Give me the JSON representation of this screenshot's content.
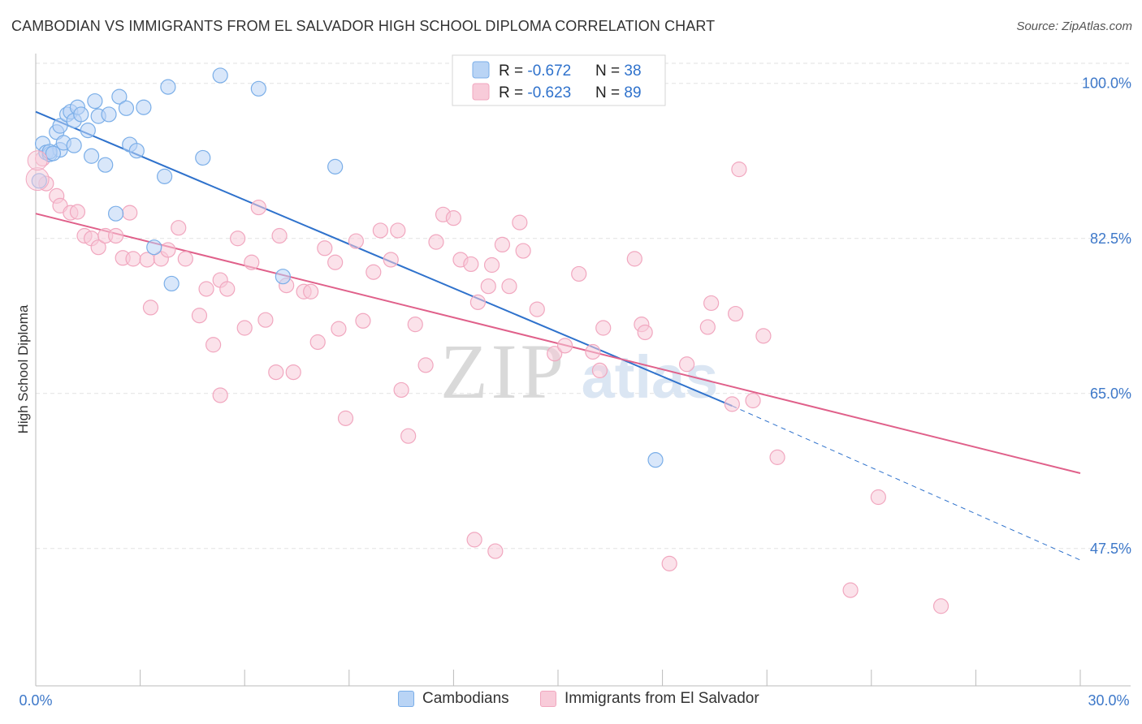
{
  "title": "CAMBODIAN VS IMMIGRANTS FROM EL SALVADOR HIGH SCHOOL DIPLOMA CORRELATION CHART",
  "source": "Source: ZipAtlas.com",
  "watermark": {
    "zip": "ZIP",
    "atlas": "atlas"
  },
  "chart_data": {
    "type": "scatter",
    "ylabel": "High School Diploma",
    "xlim": [
      0,
      30
    ],
    "ylim": [
      32,
      103
    ],
    "x_ticks": [
      "0.0%",
      "30.0%"
    ],
    "y_ticks": [
      {
        "value": 100,
        "label": "100.0%"
      },
      {
        "value": 82.5,
        "label": "82.5%"
      },
      {
        "value": 65,
        "label": "65.0%"
      },
      {
        "value": 47.5,
        "label": "47.5%"
      }
    ],
    "grid": true,
    "legend": {
      "placement": "top-center",
      "rows": [
        {
          "r_label": "R = ",
          "r_value": "-0.672",
          "n_label": "N = ",
          "n_value": "38"
        },
        {
          "r_label": "R = ",
          "r_value": "-0.623",
          "n_label": "N = ",
          "n_value": "89"
        }
      ]
    },
    "series": [
      {
        "name": "Cambodians",
        "color": "#7aaee8",
        "fill": "#b9d4f5",
        "line_color": "#2f72cc",
        "trend": {
          "x1": 0,
          "y1": 96.8,
          "x2": 20,
          "y2": 63.6,
          "dash_x2": 30,
          "dash_y2": 46.2
        },
        "points": [
          [
            0.1,
            89.0
          ],
          [
            0.2,
            93.2
          ],
          [
            0.3,
            92.2
          ],
          [
            0.4,
            92.0
          ],
          [
            0.6,
            94.5
          ],
          [
            0.7,
            95.2
          ],
          [
            0.7,
            92.5
          ],
          [
            0.8,
            93.3
          ],
          [
            0.9,
            96.5
          ],
          [
            1.0,
            96.8
          ],
          [
            1.1,
            95.8
          ],
          [
            1.2,
            97.3
          ],
          [
            1.3,
            96.5
          ],
          [
            1.5,
            94.7
          ],
          [
            1.6,
            91.8
          ],
          [
            1.7,
            98.0
          ],
          [
            1.8,
            96.3
          ],
          [
            2.0,
            90.8
          ],
          [
            2.1,
            96.5
          ],
          [
            2.3,
            85.3
          ],
          [
            2.4,
            98.5
          ],
          [
            2.6,
            97.2
          ],
          [
            2.7,
            93.1
          ],
          [
            2.9,
            92.4
          ],
          [
            3.1,
            97.3
          ],
          [
            3.4,
            81.5
          ],
          [
            3.7,
            89.5
          ],
          [
            3.8,
            99.6
          ],
          [
            3.9,
            77.4
          ],
          [
            4.8,
            91.6
          ],
          [
            5.3,
            100.9
          ],
          [
            6.4,
            99.4
          ],
          [
            7.1,
            78.2
          ],
          [
            8.6,
            90.6
          ],
          [
            17.8,
            57.5
          ],
          [
            0.4,
            92.3
          ],
          [
            0.5,
            92.1
          ],
          [
            1.1,
            93.0
          ]
        ]
      },
      {
        "name": "Immigrants from El Salvador",
        "color": "#f1a7bf",
        "fill": "#f8cbd9",
        "line_color": "#e0608a",
        "trend": {
          "x1": 0,
          "y1": 85.3,
          "x2": 30,
          "y2": 56.0
        },
        "points": [
          [
            0.2,
            91.5
          ],
          [
            0.3,
            88.7
          ],
          [
            0.6,
            87.3
          ],
          [
            0.7,
            86.2
          ],
          [
            1.0,
            85.4
          ],
          [
            1.2,
            85.5
          ],
          [
            1.4,
            82.8
          ],
          [
            1.6,
            82.5
          ],
          [
            1.8,
            81.5
          ],
          [
            2.0,
            82.8
          ],
          [
            2.3,
            82.8
          ],
          [
            2.5,
            80.3
          ],
          [
            2.7,
            85.4
          ],
          [
            2.8,
            80.2
          ],
          [
            3.2,
            80.1
          ],
          [
            3.3,
            74.7
          ],
          [
            3.6,
            80.2
          ],
          [
            3.8,
            81.2
          ],
          [
            4.1,
            83.7
          ],
          [
            4.3,
            80.2
          ],
          [
            4.7,
            73.8
          ],
          [
            4.9,
            76.8
          ],
          [
            5.1,
            70.5
          ],
          [
            5.3,
            77.8
          ],
          [
            5.5,
            76.8
          ],
          [
            5.8,
            82.5
          ],
          [
            6.0,
            72.4
          ],
          [
            6.2,
            79.8
          ],
          [
            6.4,
            86.0
          ],
          [
            6.6,
            73.3
          ],
          [
            6.9,
            67.4
          ],
          [
            7.0,
            82.8
          ],
          [
            7.2,
            77.2
          ],
          [
            7.4,
            67.4
          ],
          [
            7.7,
            76.5
          ],
          [
            7.9,
            76.5
          ],
          [
            8.1,
            70.8
          ],
          [
            8.3,
            81.4
          ],
          [
            8.6,
            79.8
          ],
          [
            8.7,
            72.3
          ],
          [
            8.9,
            62.2
          ],
          [
            9.2,
            82.2
          ],
          [
            9.4,
            73.2
          ],
          [
            9.7,
            78.7
          ],
          [
            9.9,
            83.4
          ],
          [
            10.2,
            80.1
          ],
          [
            10.4,
            83.4
          ],
          [
            10.5,
            65.4
          ],
          [
            10.7,
            60.2
          ],
          [
            10.9,
            72.8
          ],
          [
            11.2,
            68.2
          ],
          [
            11.5,
            82.1
          ],
          [
            11.7,
            85.2
          ],
          [
            12.0,
            84.8
          ],
          [
            12.2,
            80.1
          ],
          [
            12.5,
            79.6
          ],
          [
            12.7,
            75.3
          ],
          [
            13.0,
            77.1
          ],
          [
            13.1,
            79.5
          ],
          [
            13.4,
            81.8
          ],
          [
            13.6,
            77.1
          ],
          [
            13.9,
            84.3
          ],
          [
            14.0,
            81.1
          ],
          [
            14.4,
            74.5
          ],
          [
            14.9,
            69.5
          ],
          [
            15.2,
            70.4
          ],
          [
            15.6,
            78.5
          ],
          [
            16.0,
            69.7
          ],
          [
            16.2,
            67.6
          ],
          [
            16.3,
            72.4
          ],
          [
            17.2,
            80.2
          ],
          [
            17.4,
            72.8
          ],
          [
            17.5,
            71.9
          ],
          [
            18.2,
            45.8
          ],
          [
            18.7,
            68.3
          ],
          [
            19.3,
            72.5
          ],
          [
            19.4,
            75.2
          ],
          [
            20.0,
            63.8
          ],
          [
            20.1,
            74.0
          ],
          [
            20.2,
            90.3
          ],
          [
            20.6,
            64.2
          ],
          [
            20.9,
            71.5
          ],
          [
            21.3,
            57.8
          ],
          [
            24.2,
            53.3
          ],
          [
            23.4,
            42.8
          ],
          [
            26.0,
            41.0
          ],
          [
            13.2,
            47.2
          ],
          [
            5.3,
            64.8
          ],
          [
            12.6,
            48.5
          ]
        ]
      }
    ]
  }
}
